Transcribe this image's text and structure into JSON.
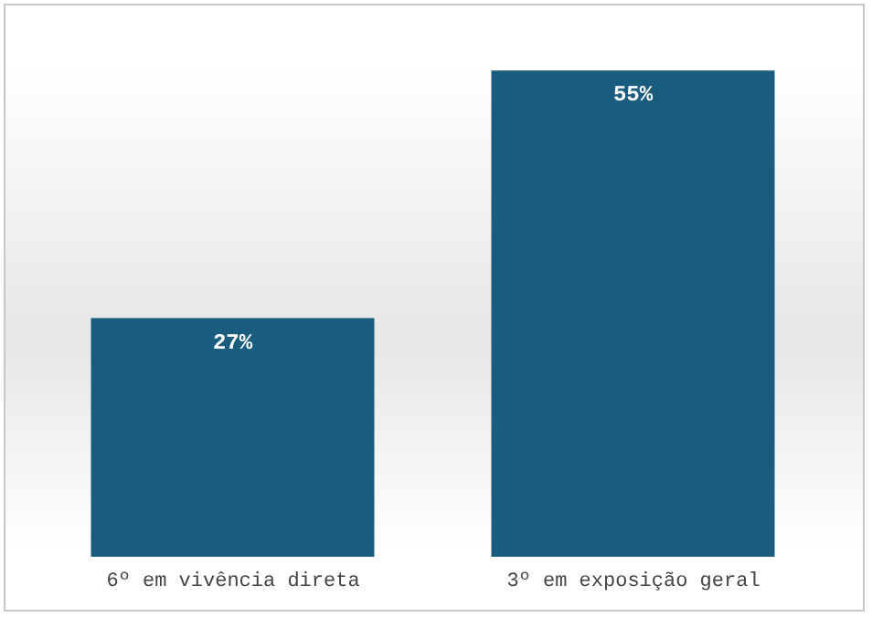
{
  "chart_data": {
    "type": "bar",
    "categories": [
      "6º em vivência direta",
      "3º em exposição geral"
    ],
    "values": [
      27,
      55
    ],
    "value_labels": [
      "27%",
      "55%"
    ],
    "color": "#1a5c7e",
    "grid": false
  }
}
